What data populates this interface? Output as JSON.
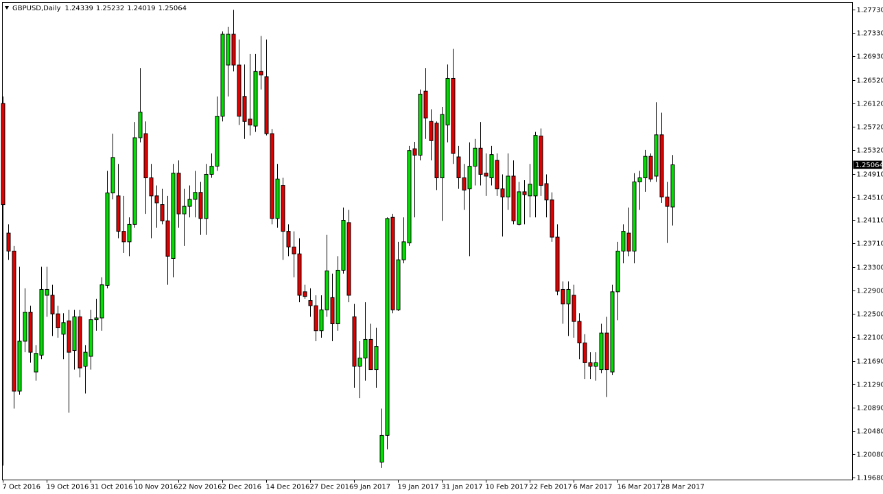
{
  "chart_data": {
    "type": "candlestick",
    "title": "GBPUSD,Daily",
    "up_color": "#00e000",
    "down_color": "#e00000",
    "outline_color": "#000000",
    "categories": [
      "7 Oct 2016",
      null,
      null,
      null,
      null,
      null,
      null,
      null,
      "19 Oct 2016",
      null,
      null,
      null,
      null,
      null,
      null,
      null,
      "31 Oct 2016",
      null,
      null,
      null,
      null,
      null,
      null,
      null,
      "10 Nov 2016",
      null,
      null,
      null,
      null,
      null,
      null,
      null,
      "22 Nov 2016",
      null,
      null,
      null,
      null,
      null,
      null,
      null,
      "2 Dec 2016",
      null,
      null,
      null,
      null,
      null,
      null,
      null,
      "14 Dec 2016",
      null,
      null,
      null,
      null,
      null,
      null,
      null,
      "27 Dec 2016",
      null,
      null,
      null,
      null,
      null,
      null,
      null,
      "9 Jan 2017",
      null,
      null,
      null,
      null,
      null,
      null,
      null,
      "19 Jan 2017",
      null,
      null,
      null,
      null,
      null,
      null,
      null,
      "31 Jan 2017",
      null,
      null,
      null,
      null,
      null,
      null,
      null,
      "10 Feb 2017",
      null,
      null,
      null,
      null,
      null,
      null,
      null,
      "22 Feb 2017",
      null,
      null,
      null,
      null,
      null,
      null,
      null,
      "6 Mar 2017",
      null,
      null,
      null,
      null,
      null,
      null,
      null,
      "16 Mar 2017",
      null,
      null,
      null,
      null,
      null,
      null,
      null,
      "28 Mar 2017",
      null,
      null
    ],
    "open": [
      1.2612,
      1.2389,
      1.2358,
      1.2117,
      1.2203,
      1.2253,
      1.215,
      1.2179,
      1.2282,
      1.2282,
      1.225,
      1.2215,
      1.2238,
      1.2187,
      1.2245,
      1.216,
      1.2177,
      1.224,
      1.2243,
      1.2299,
      1.2458,
      1.2453,
      1.2392,
      1.2374,
      1.2404,
      1.2553,
      1.256,
      1.2484,
      1.2453,
      1.2438,
      1.241,
      1.2345,
      1.2492,
      1.2422,
      1.2435,
      1.2447,
      1.2459,
      1.2414,
      1.249,
      1.2504,
      1.259,
      1.2678,
      1.2731,
      1.2678,
      1.2624,
      1.2585,
      1.2573,
      1.2667,
      1.2658,
      1.256,
      1.2414,
      1.2471,
      1.2392,
      1.2365,
      1.2353,
      1.2288,
      1.2273,
      1.2264,
      1.2221,
      1.2257,
      1.2278,
      1.2233,
      1.2325,
      1.2407,
      1.2245,
      1.216,
      1.2174,
      1.2206,
      1.2154,
      1.1995,
      1.2041,
      1.2416,
      1.2257,
      1.2343,
      1.2372,
      1.2534,
      1.2523,
      1.2633,
      1.2581,
      1.2578,
      1.2484,
      1.2575,
      1.2655,
      1.252,
      1.2484,
      1.2465,
      1.2504,
      1.2535,
      1.2492,
      1.2484,
      1.2514,
      1.2465,
      1.2451,
      1.2487,
      1.2404,
      1.246,
      1.2453,
      1.2453,
      1.2556,
      1.2474,
      1.2446,
      1.2382,
      1.2292,
      1.2267,
      1.2282,
      1.2237,
      1.22,
      1.2166,
      1.216,
      1.2154,
      1.2217,
      1.215,
      1.2288,
      1.2358,
      1.2389,
      1.2358,
      1.2477,
      1.2484,
      1.2521,
      1.2487,
      1.2558,
      1.2451,
      1.24339
    ],
    "high": [
      1.2624,
      1.2404,
      1.2367,
      1.2331,
      1.2294,
      1.2264,
      1.2196,
      1.2331,
      1.2331,
      1.23,
      1.2264,
      1.2251,
      1.2257,
      1.2257,
      1.2257,
      1.2196,
      1.2257,
      1.2276,
      1.2313,
      1.2496,
      1.256,
      1.2508,
      1.2453,
      1.2416,
      1.258,
      1.2673,
      1.2581,
      1.2508,
      1.2471,
      1.2465,
      1.2453,
      1.2508,
      1.2514,
      1.2465,
      1.2471,
      1.2496,
      1.2477,
      1.2508,
      1.2526,
      1.2624,
      1.2736,
      1.2744,
      1.2773,
      1.2722,
      1.2679,
      1.2697,
      1.2697,
      1.2728,
      1.2722,
      1.2568,
      1.2508,
      1.2484,
      1.2404,
      1.2392,
      1.238,
      1.23,
      1.2294,
      1.2282,
      1.2282,
      1.2386,
      1.2319,
      1.2349,
      1.2433,
      1.2429,
      1.2267,
      1.2203,
      1.227,
      1.2233,
      1.2226,
      1.2087,
      1.2416,
      1.2422,
      1.2374,
      1.2416,
      1.2539,
      1.2546,
      1.2636,
      1.2673,
      1.2602,
      1.2581,
      1.2606,
      1.2679,
      1.2706,
      1.2539,
      1.2508,
      1.2545,
      1.2551,
      1.258,
      1.2526,
      1.2539,
      1.2526,
      1.249,
      1.2526,
      1.2514,
      1.2477,
      1.248,
      1.2508,
      1.2563,
      1.2569,
      1.249,
      1.2459,
      1.2404,
      1.2306,
      1.2306,
      1.23,
      1.2251,
      1.2215,
      1.2184,
      1.2184,
      1.2233,
      1.2245,
      1.23,
      1.2374,
      1.2404,
      1.2433,
      1.2492,
      1.2496,
      1.2532,
      1.2526,
      1.2614,
      1.2596,
      1.2477,
      1.25232
    ],
    "low": [
      1.1989,
      1.2343,
      1.2087,
      1.2111,
      1.2184,
      1.2166,
      1.2135,
      1.2172,
      1.2245,
      1.2212,
      1.2209,
      1.2172,
      1.208,
      1.2154,
      1.2141,
      1.2113,
      1.2154,
      1.2221,
      1.2221,
      1.2294,
      1.2447,
      1.238,
      1.2355,
      1.2349,
      1.2398,
      1.2545,
      1.2422,
      1.238,
      1.2398,
      1.2404,
      1.23,
      1.2313,
      1.2398,
      1.2367,
      1.2416,
      1.2416,
      1.2386,
      1.2386,
      1.2484,
      1.2496,
      1.2581,
      1.2624,
      1.2667,
      1.2575,
      1.2551,
      1.2557,
      1.2563,
      1.2636,
      1.2557,
      1.2404,
      1.2398,
      1.2343,
      1.2349,
      1.2313,
      1.227,
      1.2276,
      1.2245,
      1.2203,
      1.2209,
      1.2245,
      1.2203,
      1.2221,
      1.2319,
      1.227,
      1.2123,
      1.2105,
      1.2135,
      1.2154,
      1.2123,
      1.1985,
      1.2017,
      1.2251,
      1.2255,
      1.2337,
      1.2367,
      1.2416,
      1.2514,
      1.2551,
      1.2514,
      1.2463,
      1.241,
      1.2545,
      1.2508,
      1.2465,
      1.2429,
      1.2349,
      1.2471,
      1.2471,
      1.2453,
      1.2471,
      1.2453,
      1.2383,
      1.2429,
      1.2404,
      1.2402,
      1.2404,
      1.2416,
      1.2416,
      1.2453,
      1.2416,
      1.2374,
      1.2282,
      1.2233,
      1.2212,
      1.2209,
      1.2172,
      1.2138,
      1.2138,
      1.2135,
      1.2148,
      1.2107,
      1.2145,
      1.2239,
      1.2337,
      1.2349,
      1.2337,
      1.2429,
      1.246,
      1.2477,
      1.2477,
      1.2441,
      1.2372,
      1.24019
    ],
    "close": [
      1.2438,
      1.2358,
      1.2117,
      1.2203,
      1.2253,
      1.2184,
      1.2182,
      1.2292,
      1.2292,
      1.225,
      1.2226,
      1.2235,
      1.2184,
      1.2245,
      1.2157,
      1.2184,
      1.224,
      1.2243,
      1.23,
      1.2458,
      1.2519,
      1.2392,
      1.2374,
      1.2404,
      1.2553,
      1.2597,
      1.2484,
      1.2453,
      1.2441,
      1.241,
      1.2349,
      1.2492,
      1.2422,
      1.2435,
      1.2447,
      1.2459,
      1.2414,
      1.249,
      1.2504,
      1.259,
      1.2731,
      1.2731,
      1.2678,
      1.259,
      1.2581,
      1.2575,
      1.2667,
      1.2661,
      1.256,
      1.2414,
      1.2482,
      1.2392,
      1.2365,
      1.2353,
      1.2282,
      1.228,
      1.2264,
      1.2221,
      1.2257,
      1.2324,
      1.2233,
      1.2325,
      1.2411,
      1.2282,
      1.216,
      1.2174,
      1.2206,
      1.2154,
      1.2194,
      1.2041,
      1.2414,
      1.2257,
      1.2343,
      1.2374,
      1.2531,
      1.2523,
      1.2628,
      1.2587,
      1.2548,
      1.2484,
      1.2593,
      1.2655,
      1.2526,
      1.2484,
      1.2463,
      1.2504,
      1.2535,
      1.249,
      1.2487,
      1.2524,
      1.2465,
      1.2451,
      1.2487,
      1.241,
      1.246,
      1.2455,
      1.2473,
      1.2557,
      1.2471,
      1.2446,
      1.2382,
      1.2289,
      1.2267,
      1.2292,
      1.2237,
      1.22,
      1.2166,
      1.216,
      1.2166,
      1.2217,
      1.2154,
      1.2288,
      1.2358,
      1.2392,
      1.2358,
      1.2477,
      1.2484,
      1.2521,
      1.2482,
      1.2558,
      1.2451,
      1.2435,
      1.25064
    ],
    "ylim": [
      1.19643,
      1.27858
    ],
    "yticks": [
      {
        "value": 1.2773,
        "label": "1.27730"
      },
      {
        "value": 1.2733,
        "label": "1.27330"
      },
      {
        "value": 1.2693,
        "label": "1.26930"
      },
      {
        "value": 1.2652,
        "label": "1.26520"
      },
      {
        "value": 1.2612,
        "label": "1.26120"
      },
      {
        "value": 1.2572,
        "label": "1.25720"
      },
      {
        "value": 1.2532,
        "label": "1.25320"
      },
      {
        "value": 1.2491,
        "label": "1.24910"
      },
      {
        "value": 1.2451,
        "label": "1.24510"
      },
      {
        "value": 1.2411,
        "label": "1.24110"
      },
      {
        "value": 1.2371,
        "label": "1.23710"
      },
      {
        "value": 1.233,
        "label": "1.23300"
      },
      {
        "value": 1.229,
        "label": "1.22900"
      },
      {
        "value": 1.225,
        "label": "1.22500"
      },
      {
        "value": 1.221,
        "label": "1.22100"
      },
      {
        "value": 1.2169,
        "label": "1.21690"
      },
      {
        "value": 1.2129,
        "label": "1.21290"
      },
      {
        "value": 1.2089,
        "label": "1.20890"
      },
      {
        "value": 1.2048,
        "label": "1.20480"
      },
      {
        "value": 1.2008,
        "label": "1.20080"
      },
      {
        "value": 1.1968,
        "label": "1.19680"
      }
    ]
  }
}
